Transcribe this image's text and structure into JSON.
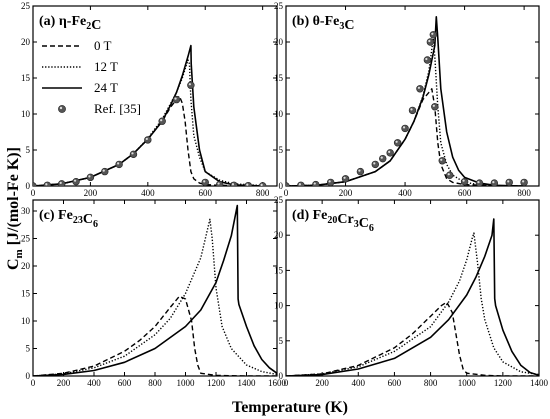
{
  "figure": {
    "ylabel_main": "C",
    "ylabel_sub": "m",
    "ylabel_unit": "[J/(mol-Fe K)]",
    "xlabel": "Temperature (K)"
  },
  "legend": {
    "entries": [
      {
        "label": "0 T",
        "style": "dashed"
      },
      {
        "label": "12 T",
        "style": "dotted"
      },
      {
        "label": "24 T",
        "style": "solid"
      },
      {
        "label": "Ref. [35]",
        "style": "marker"
      }
    ]
  },
  "chart_data": [
    {
      "type": "line",
      "title": "(a) η-Fe2C",
      "title_parts": {
        "tag": "(a)",
        "name": "η-Fe",
        "sub": "2",
        "tail": "C"
      },
      "xlim": [
        0,
        850
      ],
      "ylim": [
        0,
        25
      ],
      "xticks": [
        0,
        200,
        400,
        600,
        800
      ],
      "yticks": [
        0,
        5,
        10,
        15,
        20,
        25
      ],
      "series": [
        {
          "name": "0 T",
          "style": "dashed",
          "x": [
            0,
            100,
            200,
            300,
            350,
            400,
            450,
            480,
            500,
            510,
            520,
            530,
            540,
            550,
            560,
            580,
            600,
            650,
            700,
            800
          ],
          "y": [
            0,
            0.3,
            1.2,
            3.0,
            4.5,
            6.5,
            9.0,
            11.0,
            12.0,
            12.5,
            11.5,
            9.0,
            5.0,
            2.0,
            1.0,
            0.4,
            0.2,
            0.1,
            0.05,
            0
          ]
        },
        {
          "name": "12 T",
          "style": "dotted",
          "x": [
            0,
            100,
            200,
            300,
            350,
            400,
            450,
            480,
            500,
            520,
            540,
            545,
            550,
            560,
            580,
            600,
            650,
            700,
            800
          ],
          "y": [
            0,
            0.3,
            1.2,
            3.0,
            4.5,
            6.6,
            9.3,
            11.5,
            13.0,
            15.0,
            17.5,
            17.0,
            12.0,
            7.0,
            4.0,
            2.0,
            0.8,
            0.3,
            0.05
          ]
        },
        {
          "name": "24 T",
          "style": "solid",
          "x": [
            0,
            100,
            200,
            300,
            350,
            400,
            450,
            480,
            500,
            520,
            540,
            550,
            551,
            560,
            580,
            600,
            650,
            700,
            800
          ],
          "y": [
            0,
            0.3,
            1.2,
            3.0,
            4.5,
            6.5,
            9.0,
            11.3,
            13.0,
            15.3,
            18.0,
            19.5,
            17.0,
            11.0,
            5.0,
            2.0,
            0.6,
            0.15,
            0
          ]
        },
        {
          "name": "Ref. [35]",
          "style": "marker",
          "x": [
            0,
            50,
            100,
            150,
            200,
            250,
            300,
            350,
            400,
            450,
            500,
            550,
            600,
            650,
            700,
            750,
            800
          ],
          "y": [
            0,
            0.1,
            0.3,
            0.6,
            1.2,
            2.0,
            3.0,
            4.4,
            6.4,
            9.0,
            12.0,
            14.0,
            0.5,
            0.2,
            0.1,
            0.05,
            0.02
          ]
        }
      ]
    },
    {
      "type": "line",
      "title": "(b) θ-Fe3C",
      "title_parts": {
        "tag": "(b)",
        "name": "θ-Fe",
        "sub": "3",
        "tail": "C"
      },
      "xlim": [
        0,
        850
      ],
      "ylim": [
        0,
        25
      ],
      "xticks": [
        0,
        200,
        400,
        600,
        800
      ],
      "yticks": [
        0,
        5,
        10,
        15,
        20,
        25
      ],
      "series": [
        {
          "name": "0 T",
          "style": "dashed",
          "x": [
            0,
            100,
            200,
            300,
            350,
            400,
            430,
            460,
            480,
            490,
            500,
            510,
            520,
            540,
            560,
            600,
            700,
            800
          ],
          "y": [
            0,
            0.1,
            0.6,
            2.0,
            3.5,
            6.5,
            9.0,
            12.0,
            13.0,
            13.5,
            11.0,
            6.0,
            3.0,
            1.0,
            0.5,
            0.2,
            0.05,
            0
          ]
        },
        {
          "name": "12 T",
          "style": "dotted",
          "x": [
            0,
            100,
            200,
            300,
            350,
            400,
            430,
            460,
            480,
            490,
            495,
            500,
            510,
            520,
            540,
            560,
            600,
            650,
            700,
            800
          ],
          "y": [
            0,
            0.1,
            0.6,
            2.0,
            3.5,
            6.5,
            9.0,
            12.5,
            16.0,
            19.0,
            20.5,
            18.0,
            11.0,
            6.0,
            3.0,
            1.5,
            0.5,
            0.2,
            0.05,
            0
          ]
        },
        {
          "name": "24 T",
          "style": "solid",
          "x": [
            0,
            100,
            200,
            300,
            350,
            400,
            430,
            460,
            480,
            500,
            505,
            510,
            520,
            540,
            560,
            580,
            600,
            650,
            700,
            800
          ],
          "y": [
            0,
            0.1,
            0.6,
            2.0,
            3.5,
            6.5,
            9.0,
            12.3,
            15.5,
            19.5,
            23.5,
            20.5,
            13.5,
            7.5,
            4.0,
            2.2,
            1.2,
            0.4,
            0.1,
            0
          ]
        },
        {
          "name": "Ref. [35]",
          "style": "marker",
          "x": [
            0,
            50,
            100,
            150,
            200,
            250,
            300,
            325,
            350,
            375,
            400,
            425,
            450,
            475,
            485,
            495,
            500,
            525,
            550,
            600,
            650,
            700,
            750,
            800
          ],
          "y": [
            0,
            0.1,
            0.2,
            0.5,
            1.0,
            2.0,
            3.0,
            3.8,
            4.6,
            6.0,
            8.0,
            10.5,
            13.5,
            17.5,
            20.0,
            21.0,
            11.0,
            3.5,
            1.5,
            0.6,
            0.4,
            0.4,
            0.5,
            0.5
          ]
        }
      ]
    },
    {
      "type": "line",
      "title": "(c) Fe23C6",
      "title_parts": {
        "tag": "(c)",
        "name": "Fe",
        "sub": "23",
        "tail": "C",
        "sub2": "6"
      },
      "xlim": [
        0,
        1600
      ],
      "ylim": [
        0,
        32
      ],
      "xticks": [
        0,
        200,
        400,
        600,
        800,
        1000,
        1200,
        1400,
        1600
      ],
      "yticks": [
        0,
        5,
        10,
        15,
        20,
        25,
        30
      ],
      "series": [
        {
          "name": "0 T",
          "style": "dashed",
          "x": [
            0,
            200,
            400,
            600,
            700,
            800,
            900,
            960,
            1000,
            1040,
            1060,
            1080,
            1100,
            1200,
            1400,
            1600
          ],
          "y": [
            0,
            0.5,
            1.8,
            4.5,
            6.5,
            9.0,
            12.5,
            14.5,
            14.0,
            10.0,
            5.0,
            2.0,
            0.5,
            0.1,
            0,
            0
          ]
        },
        {
          "name": "12 T",
          "style": "dotted",
          "x": [
            0,
            200,
            400,
            600,
            800,
            900,
            1000,
            1100,
            1160,
            1175,
            1200,
            1240,
            1300,
            1400,
            1500,
            1600
          ],
          "y": [
            0,
            0.4,
            1.5,
            3.6,
            7.5,
            10.5,
            15.0,
            21.5,
            28.5,
            25.0,
            16.0,
            9.0,
            5.0,
            2.0,
            0.8,
            0.3
          ]
        },
        {
          "name": "24 T",
          "style": "solid",
          "x": [
            0,
            200,
            400,
            600,
            800,
            1000,
            1100,
            1200,
            1250,
            1300,
            1340,
            1345,
            1350,
            1400,
            1450,
            1500,
            1550,
            1600
          ],
          "y": [
            0,
            0.3,
            1.0,
            2.5,
            5.0,
            9.0,
            12.0,
            17.0,
            21.0,
            25.5,
            31.0,
            14.0,
            13.0,
            9.0,
            5.5,
            3.0,
            1.5,
            0.5
          ]
        }
      ]
    },
    {
      "type": "line",
      "title": "(d) Fe20Cr3C6",
      "title_parts": {
        "tag": "(d)",
        "name": "Fe",
        "sub": "20",
        "tail": "Cr",
        "sub2": "3",
        "tail2": "C",
        "sub3": "6"
      },
      "xlim": [
        0,
        1400
      ],
      "ylim": [
        0,
        25
      ],
      "xticks": [
        0,
        200,
        400,
        600,
        800,
        1000,
        1200,
        1400
      ],
      "yticks": [
        0,
        5,
        10,
        15,
        20,
        25
      ],
      "series": [
        {
          "name": "0 T",
          "style": "dashed",
          "x": [
            0,
            200,
            400,
            600,
            700,
            800,
            860,
            890,
            920,
            940,
            960,
            980,
            1000,
            1100,
            1200,
            1400
          ],
          "y": [
            0,
            0.3,
            1.5,
            4.0,
            6.0,
            8.5,
            10.0,
            10.5,
            9.0,
            6.0,
            3.0,
            1.0,
            0.4,
            0.1,
            0,
            0
          ]
        },
        {
          "name": "12 T",
          "style": "dotted",
          "x": [
            0,
            200,
            400,
            600,
            800,
            900,
            960,
            1000,
            1030,
            1040,
            1060,
            1080,
            1100,
            1150,
            1200,
            1300,
            1400
          ],
          "y": [
            0,
            0.3,
            1.3,
            3.5,
            7.0,
            10.5,
            13.5,
            16.5,
            19.5,
            20.3,
            16.0,
            11.0,
            8.0,
            4.0,
            2.0,
            0.6,
            0.2
          ]
        },
        {
          "name": "24 T",
          "style": "solid",
          "x": [
            0,
            200,
            400,
            600,
            800,
            900,
            1000,
            1050,
            1100,
            1140,
            1150,
            1155,
            1160,
            1200,
            1250,
            1300,
            1350,
            1400
          ],
          "y": [
            0,
            0.2,
            1.0,
            2.5,
            5.5,
            8.0,
            11.5,
            14.0,
            17.0,
            20.0,
            22.3,
            11.0,
            10.0,
            6.5,
            3.5,
            1.5,
            0.5,
            0.1
          ]
        }
      ]
    }
  ]
}
